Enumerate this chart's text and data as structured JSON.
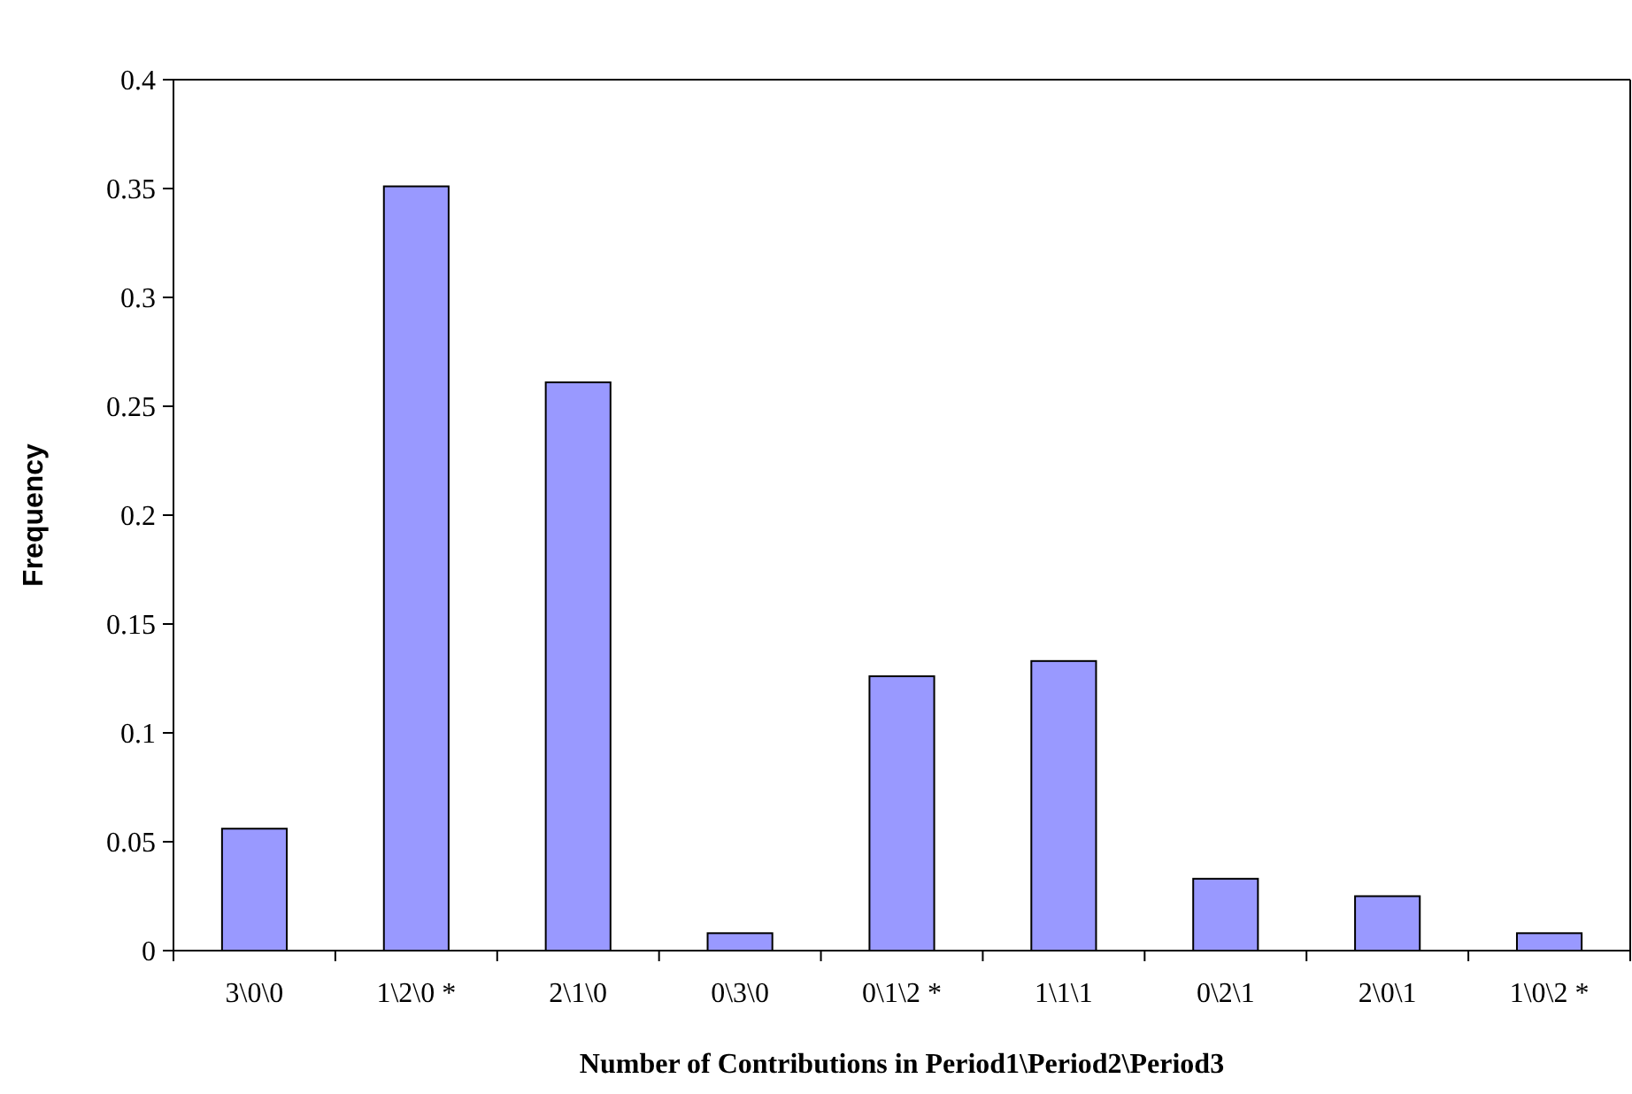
{
  "chart_data": {
    "type": "bar",
    "xlabel": "Number of Contributions in Period1\\Period2\\Period3",
    "ylabel": "Frequency",
    "categories": [
      "3\\0\\0",
      "1\\2\\0 *",
      "2\\1\\0",
      "0\\3\\0",
      "0\\1\\2 *",
      "1\\1\\1",
      "0\\2\\1",
      "2\\0\\1",
      "1\\0\\2 *"
    ],
    "values": [
      0.056,
      0.351,
      0.261,
      0.008,
      0.126,
      0.133,
      0.033,
      0.025,
      0.008
    ],
    "color": "#9999ff",
    "ylim": [
      0,
      0.4
    ],
    "yticks": [
      0,
      0.05,
      0.1,
      0.15,
      0.2,
      0.25,
      0.3,
      0.35,
      0.4
    ],
    "grid": false
  }
}
